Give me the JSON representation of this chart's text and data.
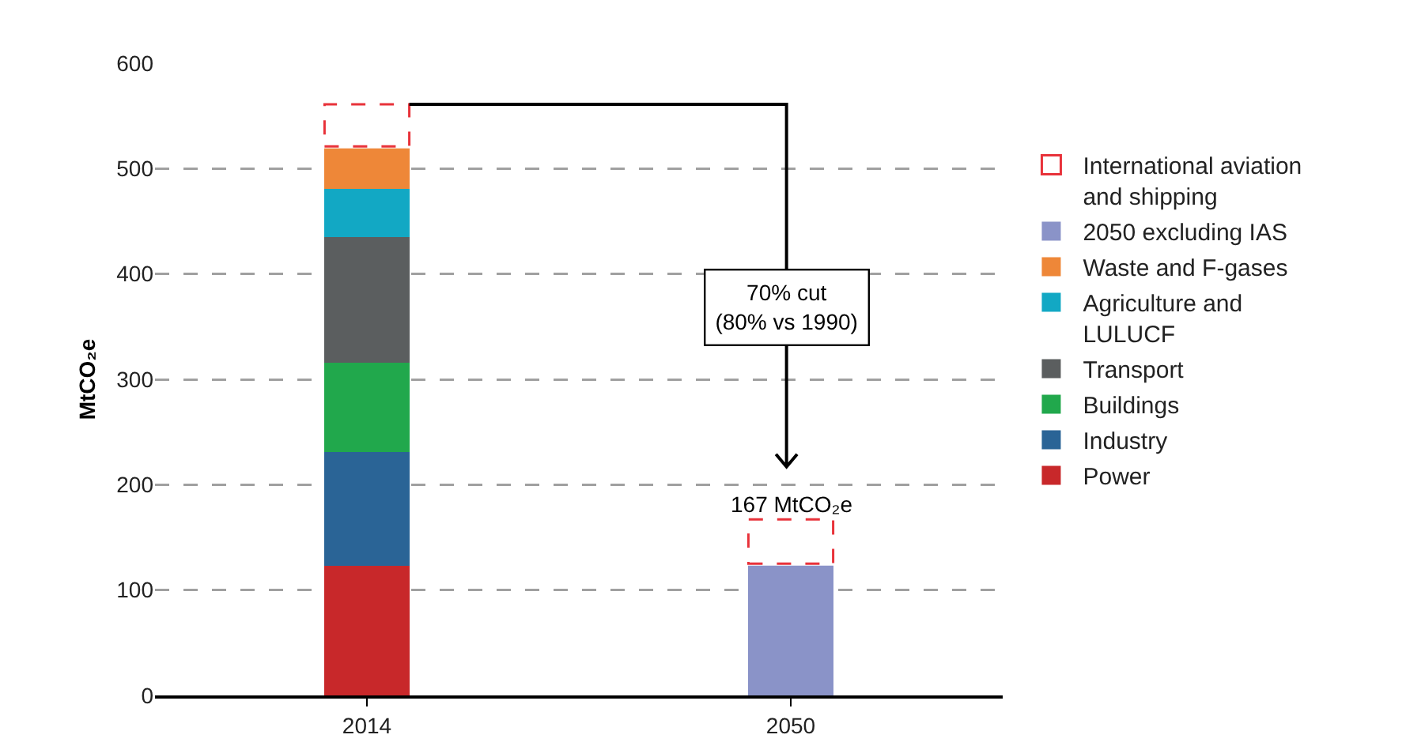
{
  "chart_data": {
    "type": "bar",
    "stacked": true,
    "ylabel": "MtCO₂e",
    "categories": [
      "2014",
      "2050"
    ],
    "series": [
      {
        "name": "Power",
        "color": "#c8282a",
        "values": [
          123,
          null
        ]
      },
      {
        "name": "Industry",
        "color": "#2a6496",
        "values": [
          108,
          null
        ]
      },
      {
        "name": "Buildings",
        "color": "#21a84c",
        "values": [
          85,
          null
        ]
      },
      {
        "name": "Transport",
        "color": "#5b5e5f",
        "values": [
          119,
          null
        ]
      },
      {
        "name": "Agriculture and\nLULUCF",
        "color": "#12a8c4",
        "values": [
          46,
          null
        ]
      },
      {
        "name": "Waste and F-gases",
        "color": "#ee8738",
        "values": [
          40,
          null
        ]
      },
      {
        "name": "2050 excluding IAS",
        "color": "#8a93c8",
        "values": [
          null,
          125
        ]
      },
      {
        "name": "International aviation\nand shipping",
        "color": "#e8323a",
        "line_style": "dashed",
        "values": [
          40,
          42
        ]
      }
    ],
    "ylim": [
      0,
      600
    ],
    "yticks": [
      0,
      100,
      200,
      300,
      400,
      500,
      600
    ],
    "grid": "y",
    "legend": "right",
    "annotations": [
      "70% cut\n(80% vs 1990)",
      {
        "text": "167 MtCO₂e",
        "x": "2050",
        "y": 167
      }
    ]
  }
}
